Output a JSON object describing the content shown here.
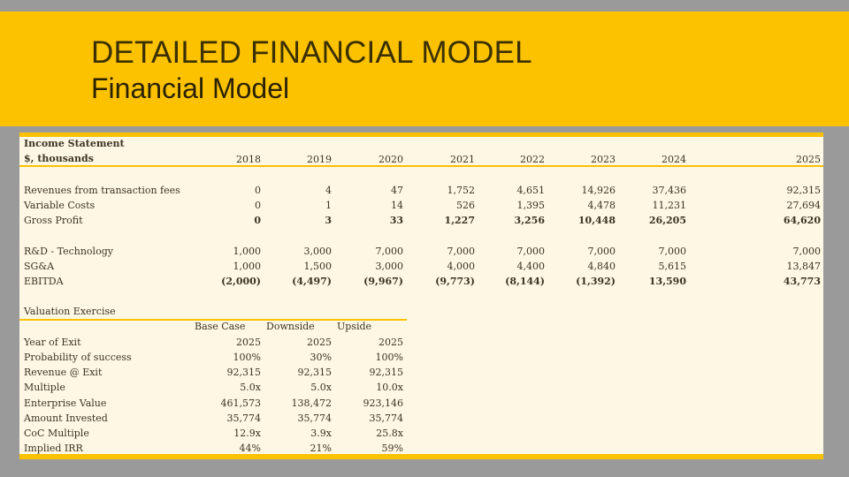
{
  "slide": {
    "title": "DETAILED FINANCIAL MODEL",
    "subtitle": "Financial Model"
  },
  "income": {
    "header_line1": "Income Statement",
    "header_line2": "$, thousands",
    "years": [
      "2018",
      "2019",
      "2020",
      "2021",
      "2022",
      "2023",
      "2024",
      "2025"
    ],
    "rows": [
      {
        "label": "Revenues from transaction fees",
        "values": [
          "0",
          "4",
          "47",
          "1,752",
          "4,651",
          "14,926",
          "37,436",
          "92,315"
        ]
      },
      {
        "label": "Variable Costs",
        "values": [
          "0",
          "1",
          "14",
          "526",
          "1,395",
          "4,478",
          "11,231",
          "27,694"
        ]
      },
      {
        "label": "Gross Profit",
        "values": [
          "0",
          "3",
          "33",
          "1,227",
          "3,256",
          "10,448",
          "26,205",
          "64,620"
        ]
      },
      {
        "label": "R&D - Technology",
        "values": [
          "1,000",
          "3,000",
          "7,000",
          "7,000",
          "7,000",
          "7,000",
          "7,000",
          "7,000"
        ]
      },
      {
        "label": "SG&A",
        "values": [
          "1,000",
          "1,500",
          "3,000",
          "4,000",
          "4,400",
          "4,840",
          "5,615",
          "13,847"
        ]
      },
      {
        "label": "EBITDA",
        "values": [
          "(2,000)",
          "(4,497)",
          "(9,967)",
          "(9,773)",
          "(8,144)",
          "(1,392)",
          "13,590",
          "43,773"
        ]
      }
    ]
  },
  "valuation": {
    "header": "Valuation Exercise",
    "scenarios": [
      "Base Case",
      "Downside",
      "Upside"
    ],
    "rows": [
      {
        "label": "Year of Exit",
        "values": [
          "2025",
          "2025",
          "2025"
        ]
      },
      {
        "label": "Probability of success",
        "values": [
          "100%",
          "30%",
          "100%"
        ]
      },
      {
        "label": "Revenue @ Exit",
        "values": [
          "92,315",
          "92,315",
          "92,315"
        ]
      },
      {
        "label": "Multiple",
        "values": [
          "5.0x",
          "5.0x",
          "10.0x"
        ]
      },
      {
        "label": "Enterprise Value",
        "values": [
          "461,573",
          "138,472",
          "923,146"
        ]
      },
      {
        "label": "Amount Invested",
        "values": [
          "35,774",
          "35,774",
          "35,774"
        ]
      },
      {
        "label": "CoC Multiple",
        "values": [
          "12.9x",
          "3.9x",
          "25.8x"
        ]
      },
      {
        "label": "Implied IRR",
        "values": [
          "44%",
          "21%",
          "59%"
        ]
      }
    ]
  }
}
